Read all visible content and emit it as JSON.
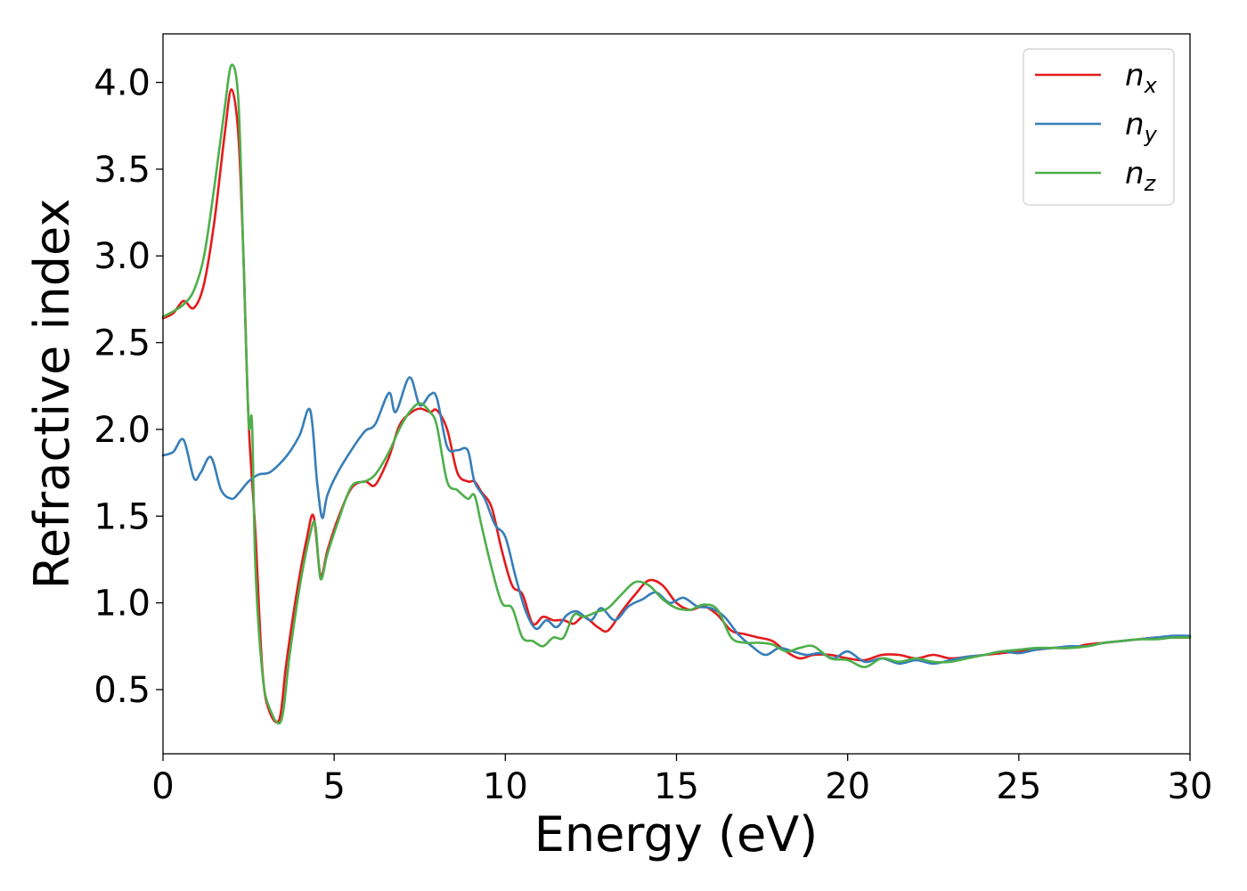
{
  "chart_data": {
    "type": "line",
    "xlabel": "Energy (eV)",
    "ylabel": "Refractive index",
    "xlim": [
      0,
      30
    ],
    "ylim": [
      0.13,
      4.28
    ],
    "xticks": [
      0,
      5,
      10,
      15,
      20,
      25,
      30
    ],
    "xtick_labels": [
      "0",
      "5",
      "10",
      "15",
      "20",
      "25",
      "30"
    ],
    "yticks": [
      0.5,
      1.0,
      1.5,
      2.0,
      2.5,
      3.0,
      3.5,
      4.0
    ],
    "ytick_labels": [
      "0.5",
      "1.0",
      "1.5",
      "2.0",
      "2.5",
      "3.0",
      "3.5",
      "4.0"
    ],
    "grid": false,
    "legend_position": "top-right",
    "series": [
      {
        "name": "n_x",
        "label_base": "n",
        "label_sub": "x",
        "color": "#e41a1c",
        "x": [
          0,
          0.3,
          0.6,
          0.9,
          1.2,
          1.5,
          1.8,
          2.0,
          2.2,
          2.35,
          2.5,
          2.7,
          2.9,
          3.1,
          3.4,
          3.6,
          3.9,
          4.2,
          4.4,
          4.6,
          4.8,
          5.1,
          5.5,
          5.9,
          6.2,
          6.6,
          6.9,
          7.2,
          7.5,
          7.8,
          8.0,
          8.3,
          8.6,
          8.9,
          9.1,
          9.3,
          9.6,
          9.9,
          10.2,
          10.5,
          10.8,
          11.1,
          11.4,
          11.7,
          12.0,
          12.3,
          12.7,
          13.0,
          13.4,
          13.8,
          14.2,
          14.6,
          15.0,
          15.4,
          15.8,
          16.2,
          16.6,
          17.0,
          17.4,
          17.8,
          18.2,
          18.6,
          19.0,
          19.5,
          20.0,
          20.5,
          21.0,
          21.5,
          22.0,
          22.5,
          23.0,
          23.5,
          24.0,
          24.5,
          25.0,
          25.5,
          26.0,
          26.5,
          27.0,
          27.5,
          28.0,
          28.5,
          29.0,
          29.5,
          30.0
        ],
        "y": [
          2.64,
          2.67,
          2.74,
          2.7,
          2.84,
          3.2,
          3.7,
          3.96,
          3.7,
          3.0,
          2.05,
          1.4,
          0.62,
          0.38,
          0.33,
          0.65,
          1.05,
          1.37,
          1.5,
          1.16,
          1.3,
          1.48,
          1.66,
          1.7,
          1.68,
          1.84,
          2.02,
          2.09,
          2.12,
          2.1,
          2.11,
          2.0,
          1.75,
          1.7,
          1.7,
          1.64,
          1.55,
          1.3,
          1.1,
          1.05,
          0.88,
          0.92,
          0.9,
          0.9,
          0.88,
          0.92,
          0.86,
          0.84,
          0.95,
          1.05,
          1.13,
          1.1,
          1.0,
          0.96,
          0.98,
          0.93,
          0.84,
          0.82,
          0.8,
          0.78,
          0.72,
          0.68,
          0.7,
          0.7,
          0.68,
          0.67,
          0.7,
          0.7,
          0.68,
          0.7,
          0.68,
          0.69,
          0.7,
          0.71,
          0.72,
          0.73,
          0.74,
          0.74,
          0.76,
          0.77,
          0.78,
          0.79,
          0.8,
          0.8,
          0.8
        ]
      },
      {
        "name": "n_y",
        "label_base": "n",
        "label_sub": "y",
        "color": "#377eb8",
        "x": [
          0,
          0.3,
          0.6,
          0.9,
          1.1,
          1.4,
          1.7,
          2.0,
          2.2,
          2.5,
          2.8,
          3.1,
          3.4,
          3.7,
          4.0,
          4.3,
          4.5,
          4.65,
          4.8,
          5.1,
          5.5,
          5.9,
          6.2,
          6.6,
          6.8,
          7.2,
          7.5,
          7.8,
          8.0,
          8.3,
          8.6,
          8.9,
          9.1,
          9.4,
          9.7,
          10.0,
          10.3,
          10.6,
          10.9,
          11.2,
          11.5,
          11.8,
          12.1,
          12.5,
          12.8,
          13.2,
          13.6,
          14.0,
          14.4,
          14.8,
          15.2,
          15.6,
          16.0,
          16.4,
          16.8,
          17.2,
          17.6,
          18.0,
          18.4,
          18.8,
          19.2,
          19.6,
          20.0,
          20.5,
          21.0,
          21.5,
          22.0,
          22.5,
          23.0,
          23.5,
          24.0,
          24.5,
          25.0,
          25.5,
          26.0,
          26.5,
          27.0,
          27.5,
          28.0,
          28.5,
          29.0,
          29.5,
          30.0
        ],
        "y": [
          1.85,
          1.87,
          1.94,
          1.72,
          1.75,
          1.84,
          1.65,
          1.6,
          1.63,
          1.7,
          1.74,
          1.75,
          1.8,
          1.87,
          1.97,
          2.11,
          1.7,
          1.49,
          1.62,
          1.75,
          1.88,
          1.99,
          2.03,
          2.21,
          2.1,
          2.3,
          2.14,
          2.2,
          2.18,
          1.9,
          1.88,
          1.88,
          1.7,
          1.6,
          1.45,
          1.38,
          1.15,
          0.95,
          0.85,
          0.9,
          0.86,
          0.93,
          0.95,
          0.9,
          0.97,
          0.9,
          0.98,
          1.02,
          1.06,
          1.0,
          1.03,
          0.98,
          0.97,
          0.92,
          0.82,
          0.75,
          0.7,
          0.74,
          0.72,
          0.7,
          0.71,
          0.68,
          0.72,
          0.66,
          0.68,
          0.65,
          0.67,
          0.65,
          0.67,
          0.69,
          0.7,
          0.72,
          0.71,
          0.73,
          0.74,
          0.75,
          0.75,
          0.77,
          0.78,
          0.79,
          0.8,
          0.81,
          0.81
        ]
      },
      {
        "name": "n_z",
        "label_base": "n",
        "label_sub": "z",
        "color": "#4daf4a",
        "x": [
          0,
          0.3,
          0.6,
          0.9,
          1.2,
          1.5,
          1.8,
          2.0,
          2.2,
          2.35,
          2.5,
          2.6,
          2.7,
          2.9,
          3.1,
          3.45,
          3.7,
          4.0,
          4.3,
          4.45,
          4.6,
          4.8,
          5.1,
          5.5,
          5.9,
          6.2,
          6.6,
          6.9,
          7.2,
          7.5,
          7.8,
          8.0,
          8.3,
          8.6,
          8.9,
          9.1,
          9.3,
          9.6,
          9.9,
          10.2,
          10.5,
          10.8,
          11.1,
          11.4,
          11.7,
          12.0,
          12.3,
          12.7,
          13.0,
          13.4,
          13.8,
          14.2,
          14.6,
          15.0,
          15.4,
          15.8,
          16.2,
          16.6,
          17.0,
          17.4,
          17.8,
          18.2,
          18.6,
          19.0,
          19.5,
          20.0,
          20.5,
          21.0,
          21.5,
          22.0,
          22.5,
          23.0,
          23.5,
          24.0,
          24.5,
          25.0,
          25.5,
          26.0,
          26.5,
          27.0,
          27.5,
          28.0,
          28.5,
          29.0,
          29.5,
          30.0
        ],
        "y": [
          2.65,
          2.68,
          2.72,
          2.8,
          3.0,
          3.4,
          3.85,
          4.1,
          3.9,
          3.0,
          2.05,
          2.04,
          1.2,
          0.6,
          0.4,
          0.32,
          0.7,
          1.1,
          1.4,
          1.45,
          1.14,
          1.28,
          1.46,
          1.67,
          1.7,
          1.74,
          1.87,
          2.0,
          2.1,
          2.15,
          2.1,
          2.02,
          1.7,
          1.65,
          1.6,
          1.62,
          1.45,
          1.2,
          1.0,
          0.97,
          0.8,
          0.78,
          0.75,
          0.8,
          0.8,
          0.93,
          0.92,
          0.95,
          0.97,
          1.05,
          1.12,
          1.1,
          1.02,
          0.97,
          0.96,
          0.99,
          0.96,
          0.8,
          0.77,
          0.77,
          0.76,
          0.72,
          0.74,
          0.75,
          0.68,
          0.67,
          0.63,
          0.68,
          0.66,
          0.68,
          0.66,
          0.66,
          0.68,
          0.7,
          0.72,
          0.73,
          0.74,
          0.74,
          0.74,
          0.75,
          0.77,
          0.78,
          0.79,
          0.79,
          0.8,
          0.8
        ]
      }
    ]
  }
}
